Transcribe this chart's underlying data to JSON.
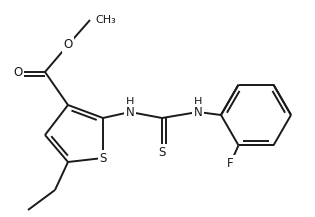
{
  "bg_color": "#ffffff",
  "line_color": "#1a1a1a",
  "line_width": 1.4,
  "font_size": 8.5,
  "figsize": [
    3.15,
    2.17
  ],
  "dpi": 100,
  "xlim": [
    0,
    315
  ],
  "ylim": [
    0,
    217
  ]
}
